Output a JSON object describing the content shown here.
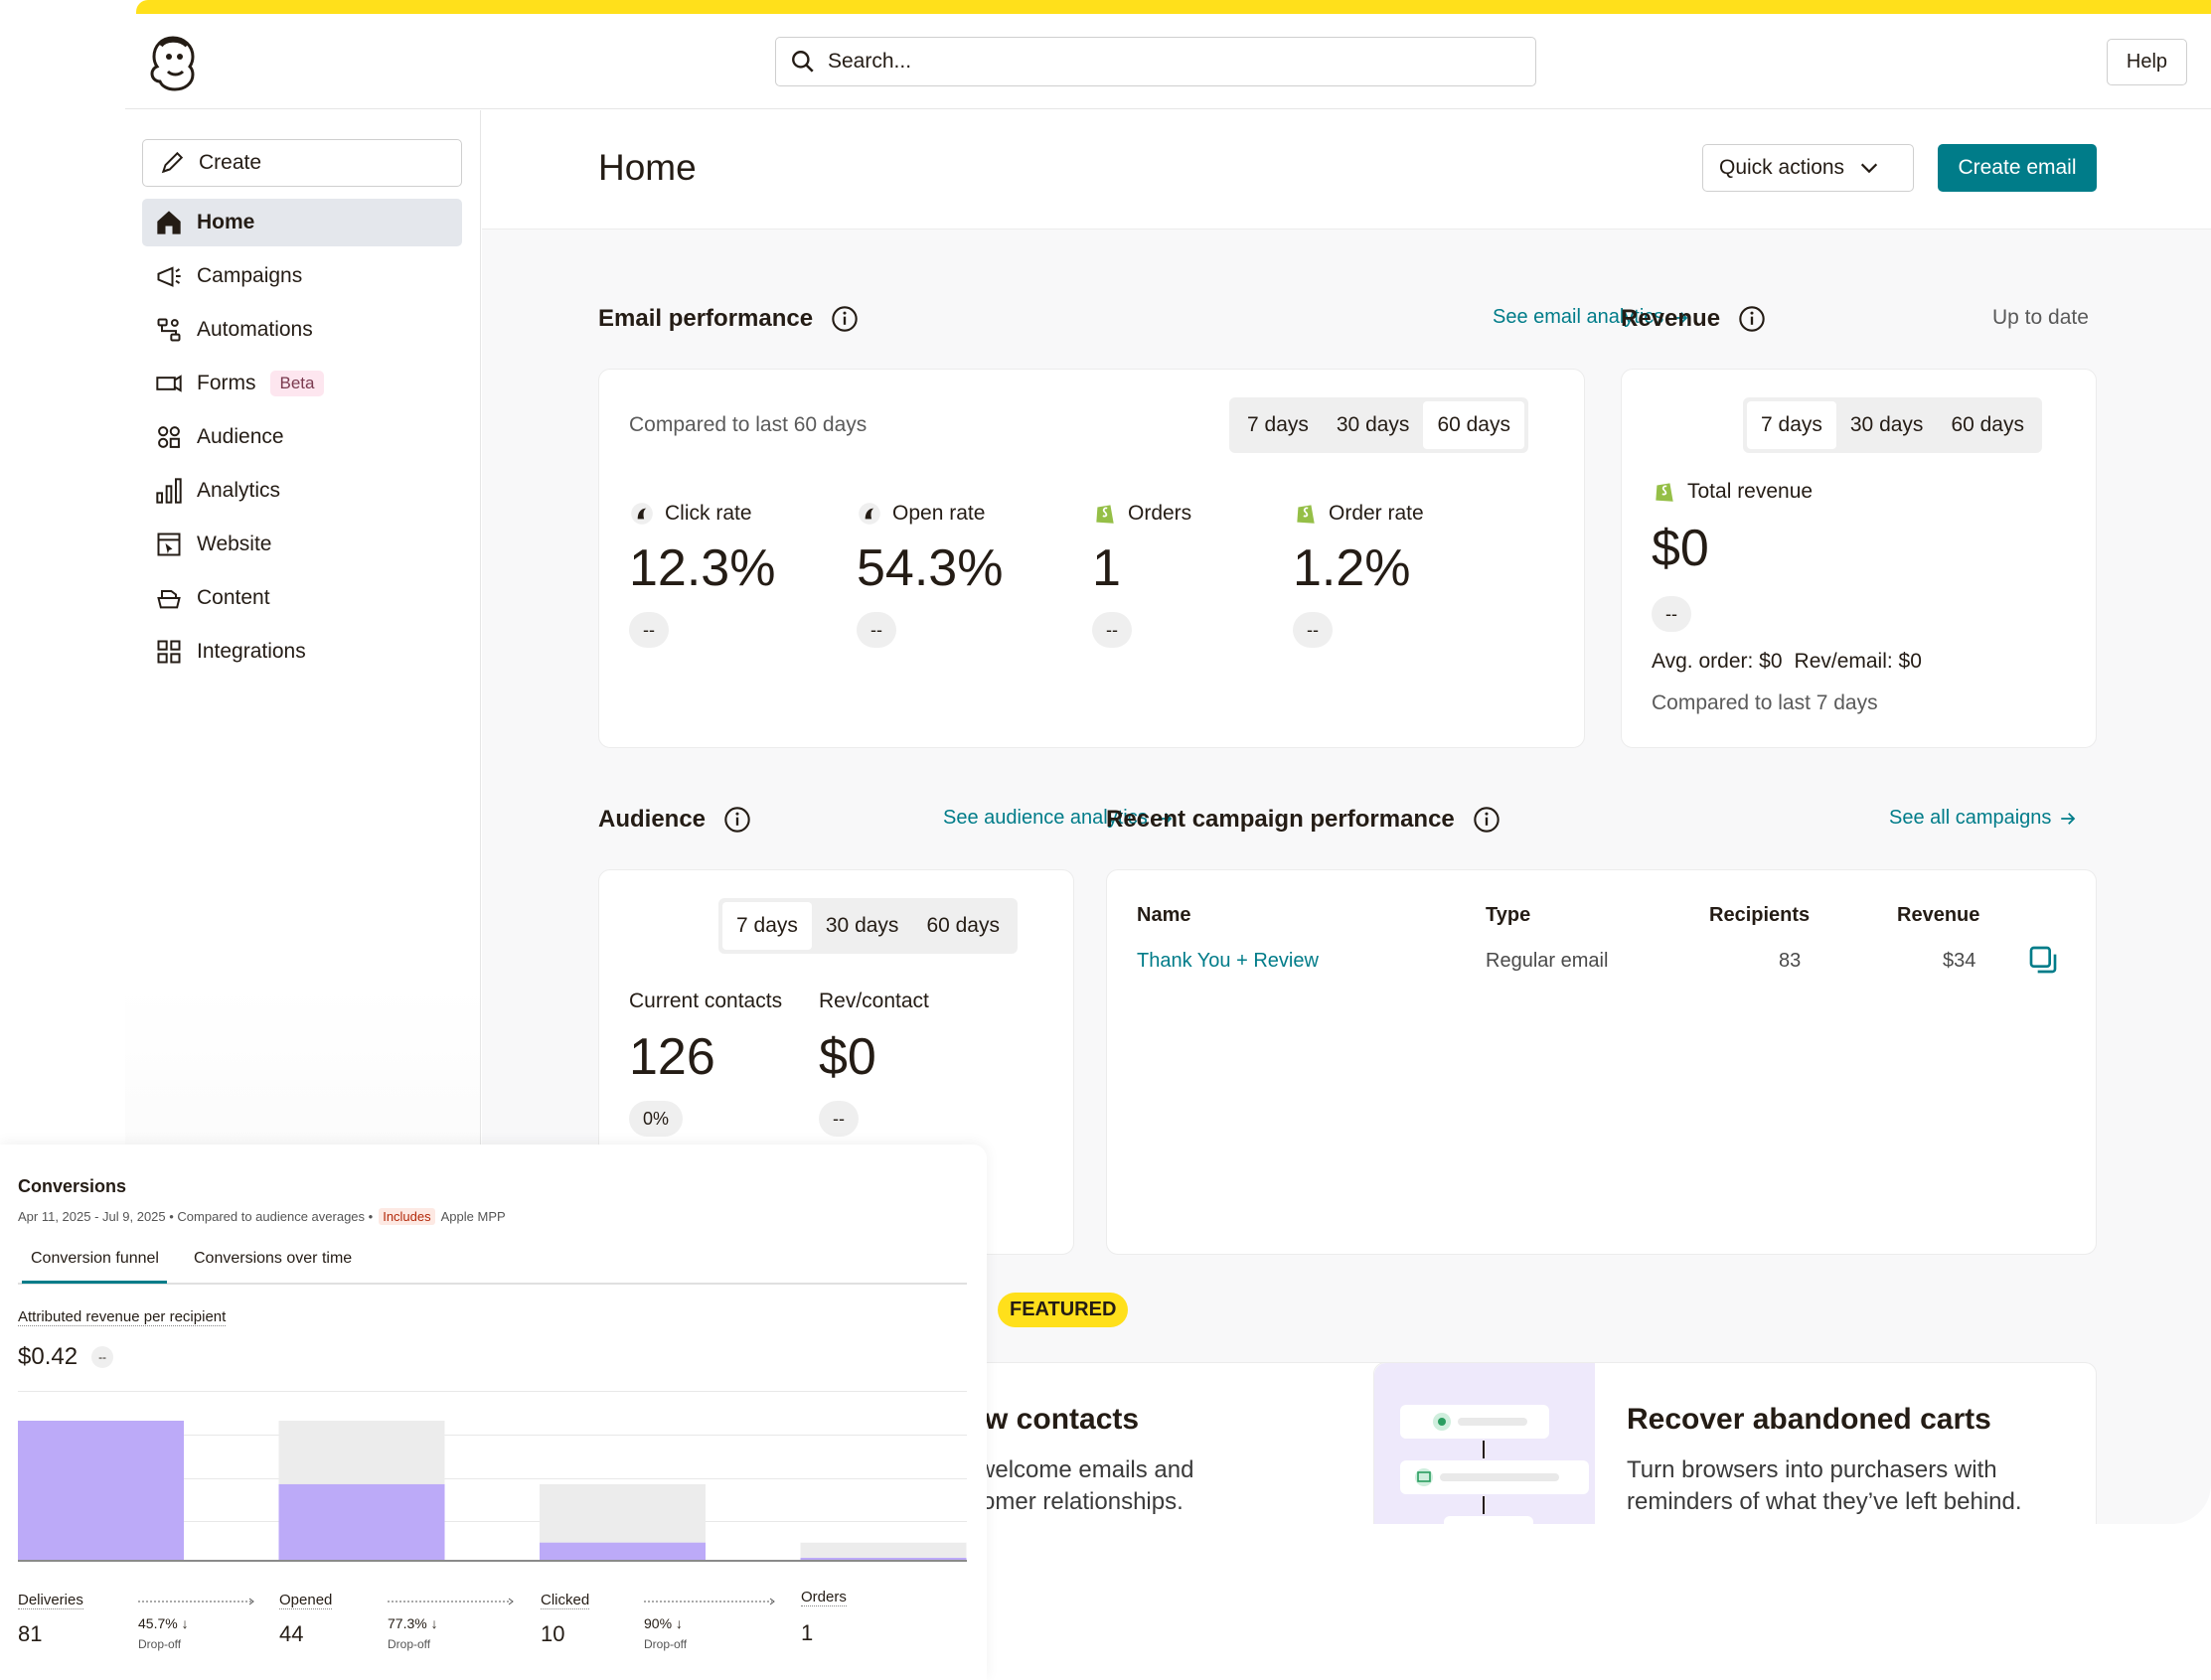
{
  "header": {
    "search_placeholder": "Search...",
    "help_label": "Help"
  },
  "sidebar": {
    "create_label": "Create",
    "items": [
      {
        "label": "Home",
        "icon": "home-icon"
      },
      {
        "label": "Campaigns",
        "icon": "megaphone-icon"
      },
      {
        "label": "Automations",
        "icon": "automation-icon"
      },
      {
        "label": "Forms",
        "icon": "form-icon",
        "badge": "Beta"
      },
      {
        "label": "Audience",
        "icon": "audience-icon"
      },
      {
        "label": "Analytics",
        "icon": "bar-chart-icon"
      },
      {
        "label": "Website",
        "icon": "website-icon"
      },
      {
        "label": "Content",
        "icon": "content-icon"
      },
      {
        "label": "Integrations",
        "icon": "grid-icon"
      }
    ]
  },
  "page": {
    "title": "Home",
    "quick_actions": "Quick actions",
    "create_email": "Create email"
  },
  "email_perf": {
    "title": "Email performance",
    "link": "See email analytics",
    "compared": "Compared to last 60 days",
    "ranges": [
      "7 days",
      "30 days",
      "60 days"
    ],
    "selected_range": "60 days",
    "metrics": [
      {
        "label": "Click rate",
        "value": "12.3%",
        "delta": "--"
      },
      {
        "label": "Open rate",
        "value": "54.3%",
        "delta": "--"
      },
      {
        "label": "Orders",
        "value": "1",
        "delta": "--"
      },
      {
        "label": "Order rate",
        "value": "1.2%",
        "delta": "--"
      }
    ]
  },
  "revenue": {
    "title": "Revenue",
    "status": "Up to date",
    "ranges": [
      "7 days",
      "30 days",
      "60 days"
    ],
    "selected_range": "7 days",
    "total_label": "Total revenue",
    "total_value": "$0",
    "delta": "--",
    "avg_order": "Avg. order: $0",
    "rev_email": "Rev/email: $0",
    "compared": "Compared to last 7 days"
  },
  "audience": {
    "title": "Audience",
    "link": "See audience analytics",
    "ranges": [
      "7 days",
      "30 days",
      "60 days"
    ],
    "selected_range": "7 days",
    "contacts_label": "Current contacts",
    "contacts_value": "126",
    "contacts_delta": "0%",
    "rev_label": "Rev/contact",
    "rev_value": "$0",
    "rev_delta": "--"
  },
  "recent": {
    "title": "Recent campaign performance",
    "link": "See all campaigns",
    "columns": [
      "Name",
      "Type",
      "Recipients",
      "Revenue"
    ],
    "rows": [
      {
        "name": "Thank You + Review",
        "type": "Regular email",
        "recipients": "83",
        "revenue": "$34"
      }
    ]
  },
  "featured": {
    "badge": "FEATURED",
    "card1": {
      "title": "new contacts",
      "line1": "ur welcome emails and",
      "line2": "ustomer relationships."
    },
    "card2": {
      "title": "Recover abandoned carts",
      "line1": "Turn browsers into purchasers with",
      "line2": "reminders of what they’ve left behind."
    }
  },
  "conversions": {
    "title": "Conversions",
    "subtitle": "Apr 11, 2025 - Jul 9, 2025 • Compared to audience averages •",
    "includes": "Includes",
    "mpp": "Apple MPP",
    "tabs": [
      "Conversion funnel",
      "Conversions over time"
    ],
    "metric_label": "Attributed revenue per recipient",
    "metric_value": "$0.42",
    "metric_delta": "--",
    "funnel": [
      {
        "label": "Deliveries",
        "value": "81"
      },
      {
        "label": "Opened",
        "value": "44"
      },
      {
        "label": "Clicked",
        "value": "10"
      },
      {
        "label": "Orders",
        "value": "1"
      }
    ],
    "dropoffs": [
      {
        "pct": "45.7%",
        "label": "Drop-off"
      },
      {
        "pct": "77.3%",
        "label": "Drop-off"
      },
      {
        "pct": "90%",
        "label": "Drop-off"
      }
    ]
  },
  "chart_data": {
    "type": "bar",
    "categories": [
      "Deliveries",
      "Opened",
      "Clicked",
      "Orders"
    ],
    "values": [
      81,
      44,
      10,
      1
    ],
    "previous_stage": [
      81,
      81,
      44,
      10
    ],
    "colors": {
      "value": "#bcaaf8",
      "previous_stage": "#ececec"
    }
  }
}
